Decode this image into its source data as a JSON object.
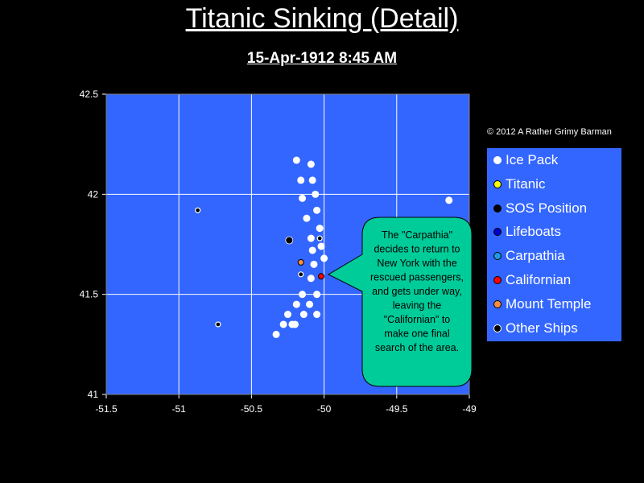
{
  "chart_data": {
    "type": "scatter",
    "title": "Titanic Sinking (Detail)",
    "subtitle": "15-Apr-1912  8:45 AM",
    "copyright": "© 2012  A Rather Grimy Barman",
    "xlim": [
      -51.5,
      -49
    ],
    "ylim": [
      41,
      42.5
    ],
    "xticks": [
      -51.5,
      -51,
      -50.5,
      -50,
      -49.5,
      -49
    ],
    "xtick_labels": [
      "-51.5",
      "-51",
      "-50.5",
      "-50",
      "-49.5",
      "-49"
    ],
    "yticks": [
      41,
      41.5,
      42,
      42.5
    ],
    "ytick_labels": [
      "41",
      "41.5",
      "42",
      "42.5"
    ],
    "grid": true,
    "legend_position": "right",
    "plot_background": "#3366ff",
    "series": [
      {
        "name": "Ice Pack",
        "color": "#ffffff",
        "points": [
          [
            -50.19,
            42.17
          ],
          [
            -50.09,
            42.15
          ],
          [
            -50.16,
            42.07
          ],
          [
            -50.08,
            42.07
          ],
          [
            -50.06,
            42.0
          ],
          [
            -50.15,
            41.98
          ],
          [
            -50.05,
            41.92
          ],
          [
            -50.12,
            41.88
          ],
          [
            -50.03,
            41.83
          ],
          [
            -50.09,
            41.78
          ],
          [
            -50.02,
            41.74
          ],
          [
            -50.08,
            41.72
          ],
          [
            -50.0,
            41.68
          ],
          [
            -50.07,
            41.65
          ],
          [
            -50.09,
            41.58
          ],
          [
            -50.15,
            41.5
          ],
          [
            -50.05,
            41.5
          ],
          [
            -50.19,
            41.45
          ],
          [
            -50.1,
            41.45
          ],
          [
            -50.05,
            41.4
          ],
          [
            -50.14,
            41.4
          ],
          [
            -50.25,
            41.4
          ],
          [
            -50.22,
            41.35
          ],
          [
            -50.2,
            41.35
          ],
          [
            -50.28,
            41.35
          ],
          [
            -50.33,
            41.3
          ],
          [
            -49.14,
            41.97
          ]
        ]
      },
      {
        "name": "Titanic",
        "color": "#ffff00",
        "points": []
      },
      {
        "name": "SOS Position",
        "color": "#000000",
        "points": [
          [
            -50.24,
            41.77
          ]
        ]
      },
      {
        "name": "Lifeboats",
        "color": "#0000cc",
        "points": []
      },
      {
        "name": "Carpathia",
        "color": "#1e9be0",
        "points": []
      },
      {
        "name": "Californian",
        "color": "#ff0000",
        "points": [
          [
            -50.02,
            41.59
          ]
        ]
      },
      {
        "name": "Mount Temple",
        "color": "#ff8c3c",
        "points": [
          [
            -50.16,
            41.66
          ]
        ]
      },
      {
        "name": "Other Ships",
        "color": "#000000",
        "points": [
          [
            -50.87,
            41.92
          ],
          [
            -50.73,
            41.35
          ],
          [
            -50.03,
            41.78
          ],
          [
            -50.16,
            41.6
          ]
        ]
      }
    ],
    "annotation": "The \"Carpathia\" decides to return to New York with the rescued passengers, and gets under way, leaving the \"Californian\" to make one final search of the area."
  }
}
